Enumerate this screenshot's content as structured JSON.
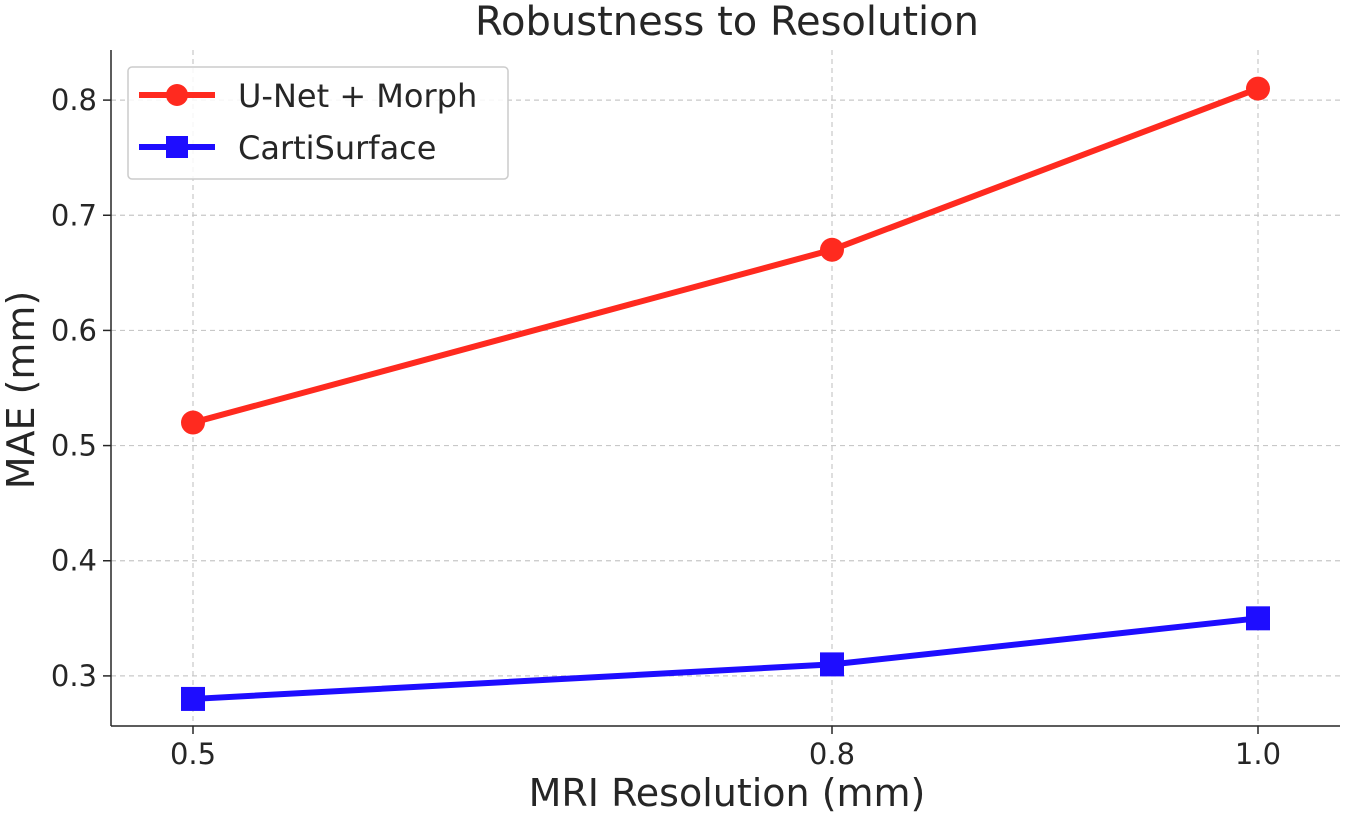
{
  "chart_data": {
    "type": "line",
    "title": "Robustness to Resolution",
    "xlabel": "MRI Resolution (mm)",
    "ylabel": "MAE (mm)",
    "x": [
      0.5,
      0.8,
      1.0
    ],
    "x_tick_labels": [
      "0.5",
      "0.8",
      "1.0"
    ],
    "y_ticks": [
      0.3,
      0.4,
      0.5,
      0.6,
      0.7,
      0.8
    ],
    "y_tick_labels": [
      "0.3",
      "0.4",
      "0.5",
      "0.6",
      "0.7",
      "0.8"
    ],
    "xlim": [
      0.4615,
      1.0385
    ],
    "ylim": [
      0.2565,
      0.8435
    ],
    "grid": true,
    "legend_position": "top-left",
    "series": [
      {
        "name": "U-Net + Morph",
        "values": [
          0.52,
          0.67,
          0.81
        ],
        "color": "#ff2a1f",
        "marker": "circle"
      },
      {
        "name": "CartiSurface",
        "values": [
          0.28,
          0.31,
          0.35
        ],
        "color": "#1e0dff",
        "marker": "square"
      }
    ]
  }
}
